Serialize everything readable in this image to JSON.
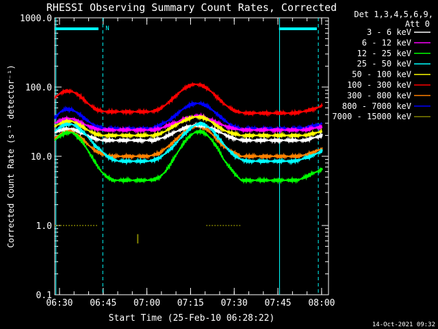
{
  "chart_data": {
    "type": "line",
    "title": "RHESSI Observing Summary Count Rates, Corrected",
    "xlabel": "Start Time (25-Feb-10 06:28:22)",
    "ylabel": "Corrected Count Rate (s⁻¹ detector⁻¹)",
    "y_scale": "log",
    "ylim": [
      0.1,
      1000
    ],
    "xlim_minutes": [
      0,
      94
    ],
    "x_ticks": [
      "06:30",
      "06:45",
      "07:00",
      "07:15",
      "07:30",
      "07:45",
      "08:00"
    ],
    "x_tick_minutes": [
      1.63,
      16.63,
      31.63,
      46.63,
      61.63,
      76.63,
      91.63
    ],
    "y_ticks": [
      "0.1",
      "1.0",
      "10.0",
      "100.0",
      "1000.0"
    ],
    "y_tick_values": [
      0.1,
      1,
      10,
      100,
      1000
    ],
    "legend_header": [
      "Det 1,3,4,5,6,9,",
      "Att 0"
    ],
    "legend_placement": "right",
    "timestamp": "14-Oct-2021 09:32",
    "night_marker": "N",
    "x": [
      0,
      2,
      4,
      6,
      8,
      10,
      12,
      14,
      16,
      18,
      20,
      22,
      24,
      26,
      28,
      30,
      32,
      34,
      36,
      38,
      40,
      42,
      44,
      46,
      48,
      50,
      52,
      54,
      56,
      58,
      60,
      62,
      64,
      66,
      68,
      70,
      72,
      74,
      76,
      78,
      80,
      82,
      84,
      86,
      88,
      90,
      92
    ],
    "series": [
      {
        "name": "3 - 6 keV",
        "color": "#ffffff",
        "values": [
          22,
          24,
          25,
          25,
          23,
          21,
          19,
          18,
          17,
          17,
          17,
          17,
          17,
          17,
          17,
          17,
          17,
          17,
          18,
          19,
          21,
          23,
          25,
          27,
          28,
          28,
          27,
          25,
          23,
          21,
          19,
          18,
          17,
          17,
          17,
          17,
          17,
          17,
          17,
          17,
          17,
          17,
          17,
          17,
          18,
          19,
          20
        ]
      },
      {
        "name": "6 - 12 keV",
        "color": "#ff00ff",
        "values": [
          30,
          33,
          35,
          35,
          32,
          29,
          27,
          25,
          24,
          24,
          24,
          24,
          24,
          24,
          24,
          24,
          24,
          24,
          25,
          27,
          29,
          31,
          34,
          36,
          38,
          38,
          36,
          33,
          30,
          28,
          26,
          25,
          24,
          24,
          24,
          24,
          24,
          24,
          24,
          24,
          24,
          24,
          24,
          24,
          25,
          26,
          27
        ]
      },
      {
        "name": "12 - 25 keV",
        "color": "#00ff00",
        "values": [
          17,
          20,
          22,
          22,
          19,
          15,
          11,
          8,
          6,
          5,
          4.5,
          4.5,
          4.5,
          4.5,
          4.5,
          4.5,
          4.5,
          4.6,
          5,
          6,
          8,
          11,
          15,
          19,
          22,
          23,
          21,
          17,
          13,
          9,
          7,
          5.5,
          4.5,
          4.5,
          4.5,
          4.5,
          4.5,
          4.5,
          4.5,
          4.5,
          4.5,
          4.5,
          4.6,
          5,
          5.5,
          6,
          6.5
        ]
      },
      {
        "name": "25 - 50 keV",
        "color": "#00ffff",
        "values": [
          23,
          27,
          29,
          29,
          26,
          22,
          18,
          14,
          12,
          10,
          9,
          8.5,
          8.5,
          8.5,
          8.5,
          8.5,
          8.5,
          8.8,
          9.5,
          11,
          13,
          16,
          20,
          24,
          28,
          30,
          28,
          24,
          19,
          15,
          12,
          10,
          9,
          8.5,
          8.5,
          8.5,
          8.5,
          8.5,
          8.5,
          8.5,
          8.5,
          8.5,
          8.8,
          9.5,
          10,
          11,
          12
        ]
      },
      {
        "name": "50 - 100 keV",
        "color": "#ffff00",
        "values": [
          27,
          30,
          32,
          32,
          29,
          26,
          23,
          21,
          20,
          20,
          20,
          20,
          20,
          20,
          20,
          20,
          20,
          20,
          21,
          23,
          26,
          29,
          32,
          35,
          37,
          37,
          35,
          31,
          27,
          24,
          22,
          21,
          20,
          20,
          20,
          20,
          20,
          20,
          20,
          20,
          20,
          20,
          20,
          20,
          21,
          22,
          23
        ]
      },
      {
        "name": "100 - 300 keV",
        "color": "#ff0000",
        "values": [
          70,
          82,
          88,
          86,
          78,
          66,
          55,
          48,
          45,
          44,
          44,
          44,
          44,
          44,
          44,
          44,
          44,
          45,
          48,
          55,
          65,
          78,
          92,
          104,
          110,
          108,
          98,
          84,
          70,
          58,
          50,
          45,
          43,
          42,
          42,
          42,
          42,
          42,
          42,
          42,
          42,
          42,
          43,
          45,
          47,
          50,
          54
        ]
      },
      {
        "name": "300 - 800 keV",
        "color": "#ff8000",
        "values": [
          18,
          21,
          23,
          23,
          20,
          17,
          14,
          12,
          11,
          10,
          10,
          10,
          10,
          10,
          10,
          10,
          10,
          10.5,
          11,
          13,
          15,
          18,
          22,
          25,
          27,
          27,
          25,
          21,
          17,
          14,
          12,
          11,
          10,
          10,
          10,
          10,
          10,
          10,
          10,
          10,
          10,
          10,
          10,
          10.5,
          11,
          12,
          13
        ]
      },
      {
        "name": "800 - 7000 keV",
        "color": "#0000ff",
        "values": [
          36,
          44,
          48,
          47,
          42,
          36,
          31,
          27,
          26,
          25,
          25,
          25,
          25,
          25,
          25,
          25,
          25,
          26,
          28,
          31,
          35,
          41,
          48,
          54,
          58,
          58,
          54,
          47,
          40,
          34,
          29,
          26,
          25,
          25,
          25,
          25,
          25,
          25,
          25,
          25,
          25,
          25,
          25,
          26,
          27,
          28,
          30
        ]
      },
      {
        "name": "7000 - 15000 keV",
        "color": "#808000",
        "values": [
          1,
          1,
          1,
          1,
          1,
          1,
          1,
          1,
          null,
          null,
          null,
          null,
          null,
          null,
          null,
          null,
          null,
          null,
          null,
          null,
          null,
          null,
          null,
          null,
          null,
          null,
          null,
          null,
          null,
          null,
          null,
          null,
          null,
          null,
          null,
          null,
          null,
          null,
          null,
          null,
          null,
          null,
          null,
          null,
          null,
          null,
          null
        ]
      }
    ],
    "spikes_7000_15000": [
      {
        "x": 28.5,
        "y_low": 0.55,
        "y_high": 0.75
      }
    ],
    "segments_7000_15000": [
      {
        "x_start": 0,
        "x_end": 15,
        "y": 1.0
      },
      {
        "x_start": 52,
        "x_end": 64,
        "y": 1.0
      }
    ],
    "saa_bars": [
      {
        "x_start": 0,
        "x_end": 15
      },
      {
        "x_start": 77,
        "x_end": 90
      }
    ],
    "dashed_markers": [
      16.5,
      90.5
    ],
    "solid_markers": [
      0.4,
      77.2
    ]
  }
}
